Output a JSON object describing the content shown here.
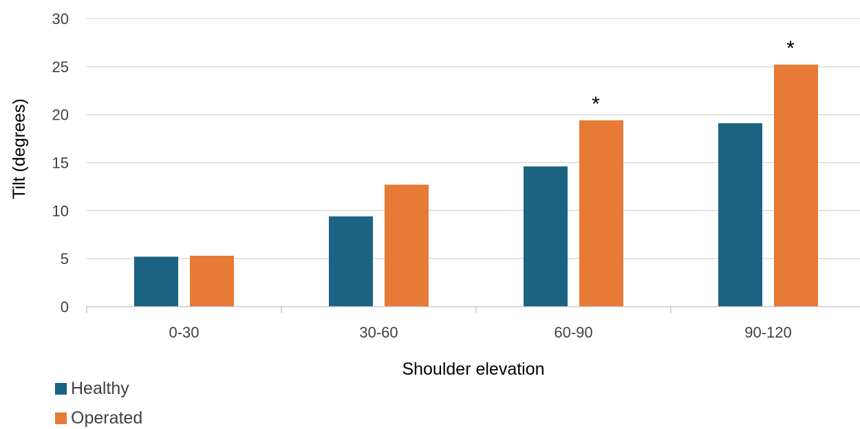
{
  "chart_data": {
    "type": "bar",
    "categories": [
      "0-30",
      "30-60",
      "60-90",
      "90-120"
    ],
    "series": [
      {
        "name": "Healthy",
        "values": [
          5.2,
          9.4,
          14.6,
          19.1
        ],
        "color": "#1b6382"
      },
      {
        "name": "Operated",
        "values": [
          5.3,
          12.7,
          19.4,
          25.2
        ],
        "color": "#e77a34"
      }
    ],
    "title": "",
    "xlabel": "Shoulder elevation",
    "ylabel": "Tilt (degrees)",
    "ylim": [
      0,
      30
    ],
    "yticks": [
      "0",
      "5",
      "10",
      "15",
      "20",
      "25",
      "30"
    ],
    "grid": true,
    "legend_position": "bottom-left",
    "annotations": [
      {
        "text": "*",
        "category": "60-90",
        "series": "Operated"
      },
      {
        "text": "*",
        "category": "90-120",
        "series": "Operated"
      }
    ]
  }
}
